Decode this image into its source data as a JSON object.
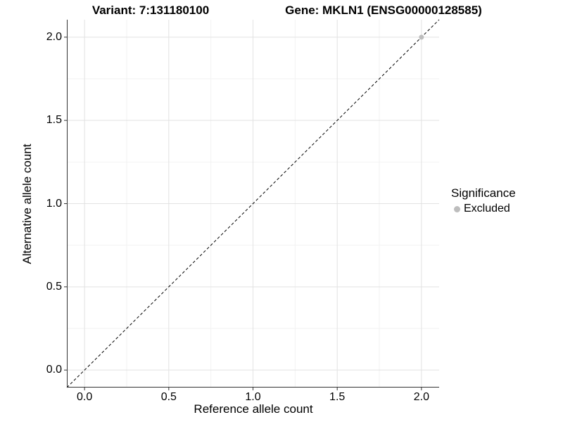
{
  "titles": {
    "variant": "Variant: 7:131180100",
    "gene": "Gene: MKLN1 (ENSG00000128585)"
  },
  "colors": {
    "background": "#ffffff",
    "text": "#000000",
    "axis_line": "#333333",
    "grid_major": "#e2e2e2",
    "grid_minor": "#f2f2f2",
    "excluded_point": "#bdbdbd",
    "reference_line": "#000000"
  },
  "chart_data": {
    "type": "scatter",
    "title_left": "Variant: 7:131180100",
    "title_right": "Gene: MKLN1 (ENSG00000128585)",
    "xlabel": "Reference allele count",
    "ylabel": "Alternative allele count",
    "xlim": [
      -0.105,
      2.105
    ],
    "ylim": [
      -0.105,
      2.105
    ],
    "x_ticks": [
      0.0,
      0.5,
      1.0,
      1.5,
      2.0
    ],
    "y_ticks": [
      0.0,
      0.5,
      1.0,
      1.5,
      2.0
    ],
    "x_tick_labels": [
      "0.0",
      "0.5",
      "1.0",
      "1.5",
      "2.0"
    ],
    "y_tick_labels": [
      "0.0",
      "0.5",
      "1.0",
      "1.5",
      "2.0"
    ],
    "x_minor_ticks": [
      0.25,
      0.75,
      1.25,
      1.75
    ],
    "y_minor_ticks": [
      0.25,
      0.75,
      1.25,
      1.75
    ],
    "grid": true,
    "series": [
      {
        "name": "Excluded",
        "color": "#bdbdbd",
        "points": [
          [
            2.0,
            2.0
          ]
        ]
      }
    ],
    "reference_line": {
      "type": "identity",
      "style": "dashed",
      "color": "#000000"
    },
    "legend": {
      "title": "Significance",
      "position": "right",
      "items": [
        {
          "label": "Excluded",
          "color": "#bdbdbd"
        }
      ]
    }
  }
}
